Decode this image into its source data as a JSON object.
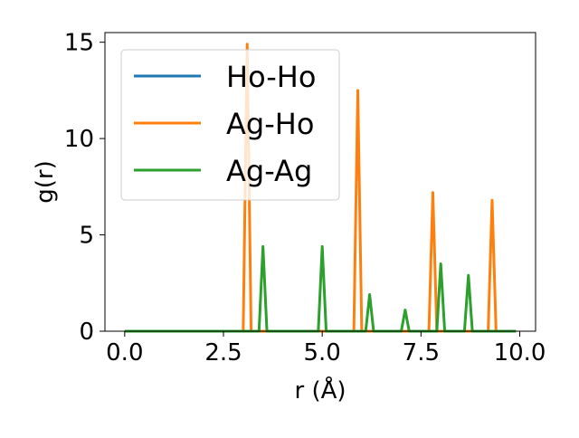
{
  "chart_data": {
    "type": "line",
    "title": "",
    "xlabel": "r (Å)",
    "ylabel": "g(r)",
    "xlim": [
      -0.5,
      10.4
    ],
    "ylim": [
      0,
      15.5
    ],
    "xticks": [
      "0.0",
      "2.5",
      "5.0",
      "7.5",
      "10.0"
    ],
    "xtick_values": [
      0,
      2.5,
      5,
      7.5,
      10
    ],
    "yticks": [
      "0",
      "5",
      "10",
      "15"
    ],
    "ytick_values": [
      0,
      5,
      10,
      15
    ],
    "grid": false,
    "legend_position": "upper-left",
    "peak_half_width": 0.1,
    "series": [
      {
        "name": "Ho-Ho",
        "color": "#1f77b4",
        "x_range": [
          0,
          9.9
        ],
        "peaks": []
      },
      {
        "name": "Ag-Ho",
        "color": "#ff7f0e",
        "x_range": [
          0,
          9.9
        ],
        "peaks": [
          {
            "x": 3.1,
            "y": 14.9
          },
          {
            "x": 5.9,
            "y": 12.5
          },
          {
            "x": 7.8,
            "y": 7.2
          },
          {
            "x": 9.3,
            "y": 6.8
          }
        ]
      },
      {
        "name": "Ag-Ag",
        "color": "#2ca02c",
        "x_range": [
          0,
          9.9
        ],
        "peaks": [
          {
            "x": 3.5,
            "y": 4.4
          },
          {
            "x": 5.0,
            "y": 4.4
          },
          {
            "x": 6.2,
            "y": 1.9
          },
          {
            "x": 7.1,
            "y": 1.1
          },
          {
            "x": 8.0,
            "y": 3.5
          },
          {
            "x": 8.7,
            "y": 2.9
          }
        ]
      }
    ]
  }
}
